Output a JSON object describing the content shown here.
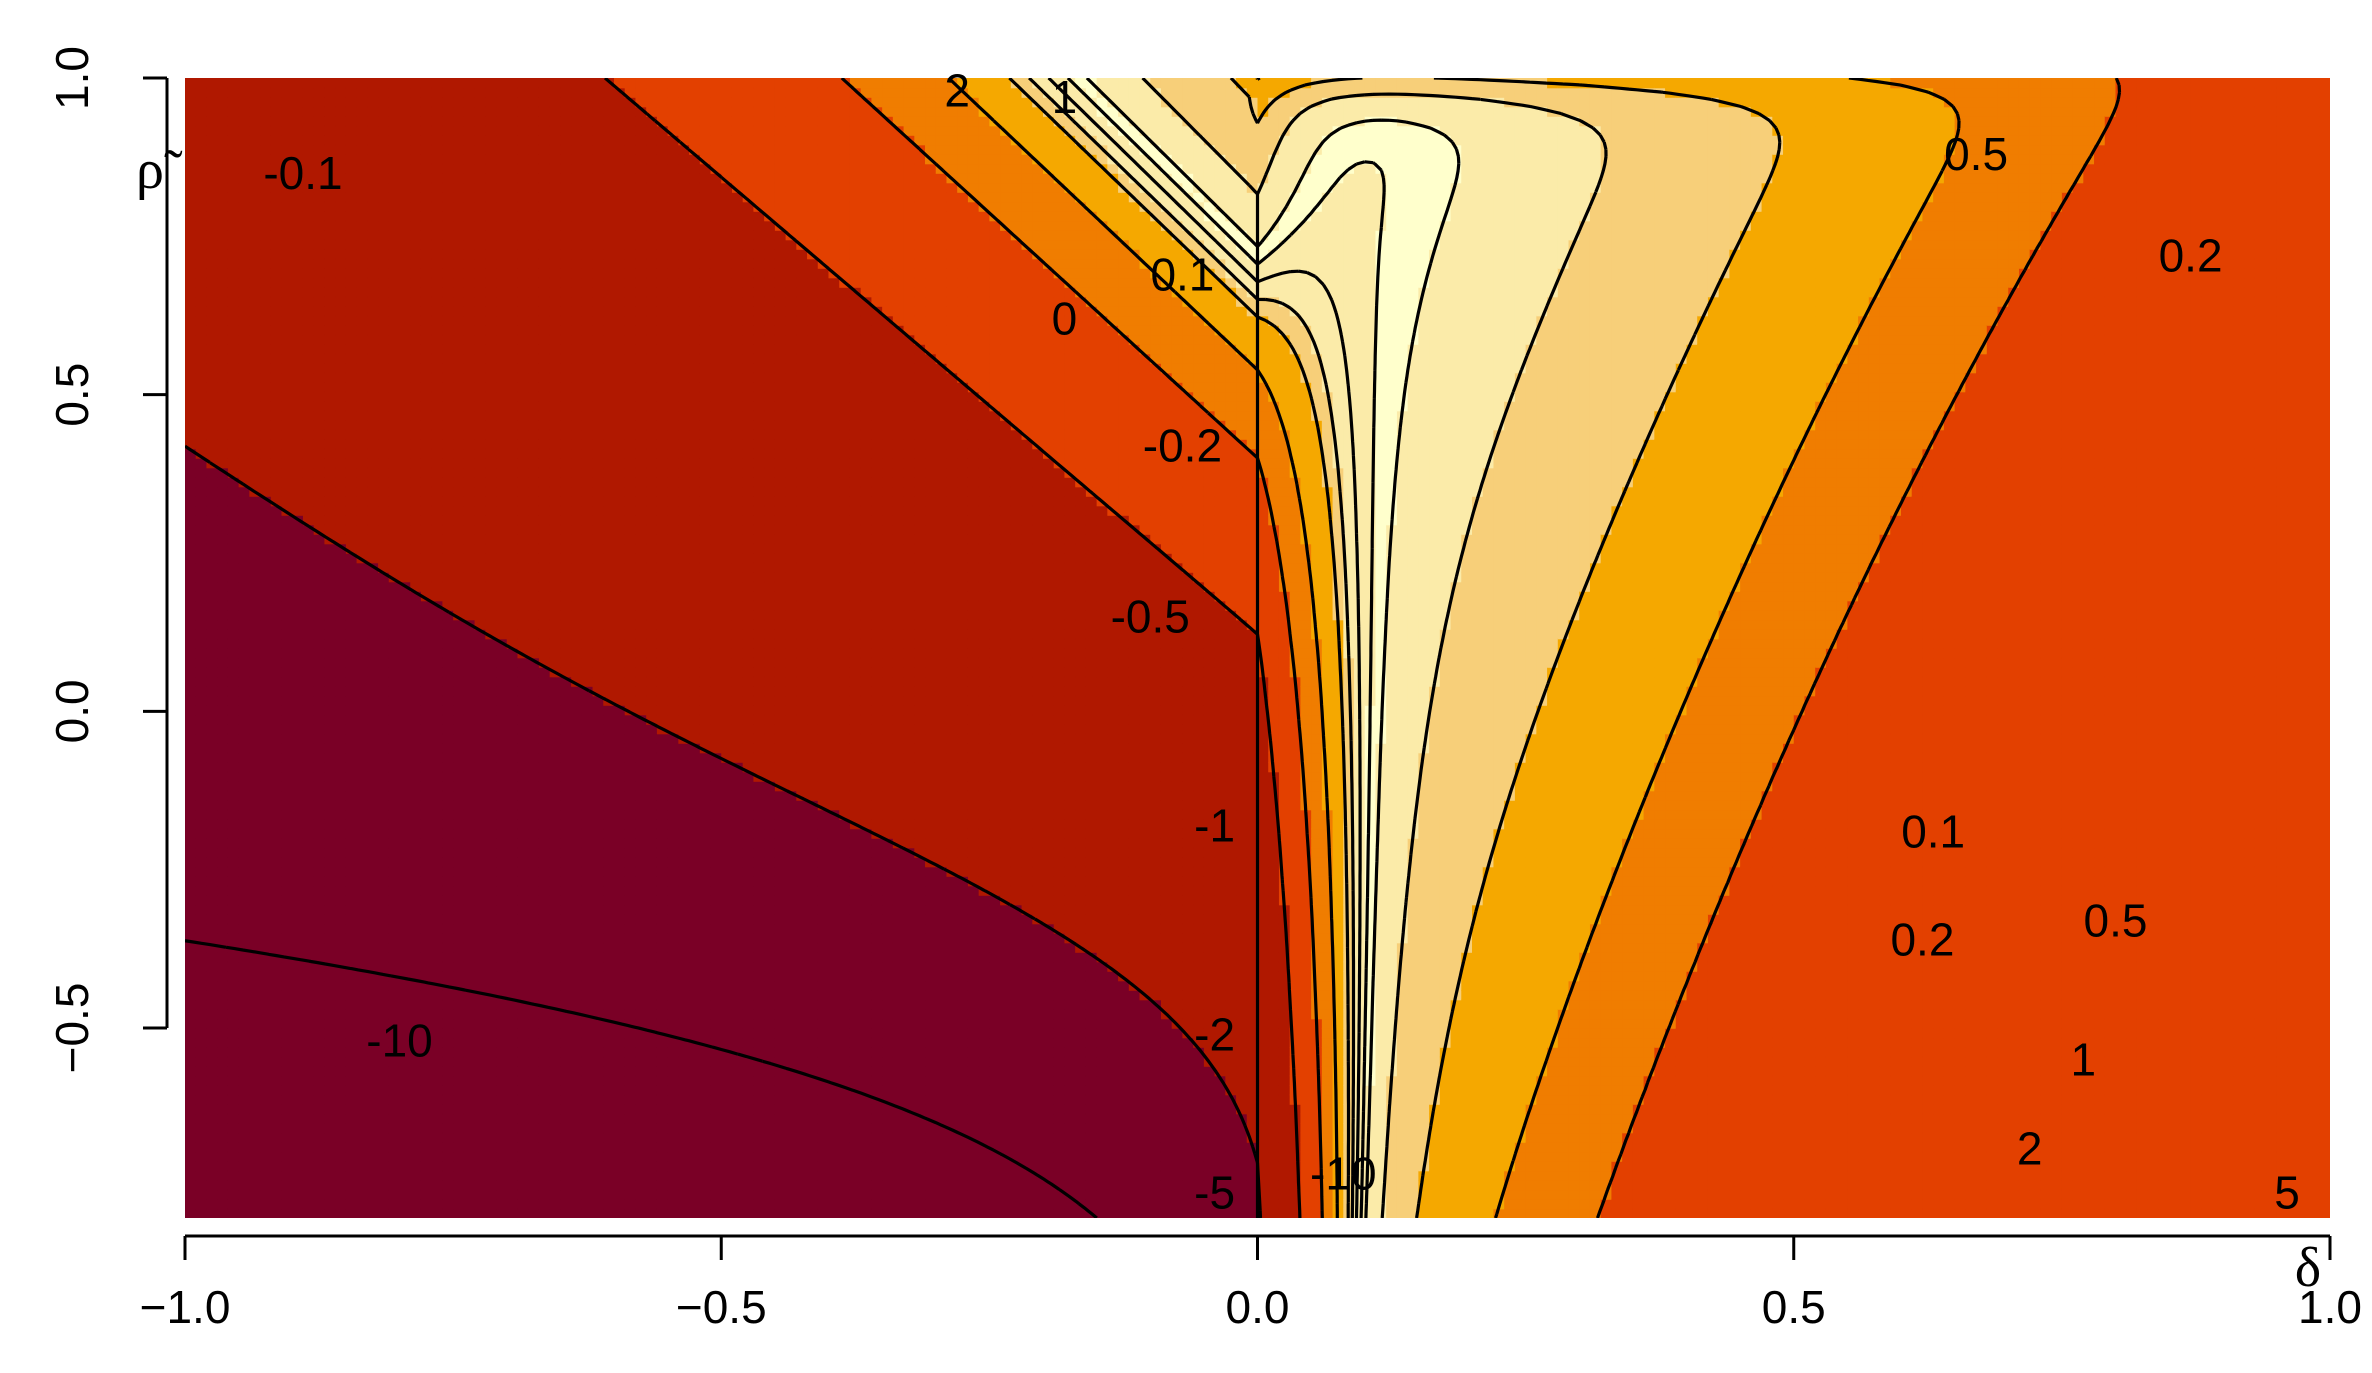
{
  "chart_data": {
    "type": "heatmap",
    "subtype": "filled-contour",
    "xlabel": "δ",
    "ylabel": "ρ̃",
    "xlim": [
      -1.0,
      1.0
    ],
    "ylim": [
      -0.8,
      1.0
    ],
    "x_ticks": [
      "−1.0",
      "−0.5",
      "0.0",
      "0.5",
      "1.0"
    ],
    "x_tick_values": [
      -1.0,
      -0.5,
      0.0,
      0.5,
      1.0
    ],
    "y_ticks": [
      "−0.5",
      "0.0",
      "0.5",
      "1.0"
    ],
    "y_tick_values": [
      -0.5,
      0.0,
      0.5,
      1.0
    ],
    "grid": false,
    "legend": "none",
    "color_levels": [
      "#7A0026",
      "#B01800",
      "#E34000",
      "#F07D00",
      "#F5A800",
      "#F7CF79",
      "#FBEBA9",
      "#FFFFCC"
    ],
    "contour_levels": [
      -10,
      -5,
      -2,
      -1,
      -0.5,
      -0.2,
      -0.1,
      0,
      0.1,
      0.2,
      0.5,
      1,
      2,
      5
    ],
    "contour_labels": [
      {
        "text": "2",
        "x": -0.28,
        "y": 0.98
      },
      {
        "text": "1",
        "x": -0.18,
        "y": 0.97
      },
      {
        "text": "0.5",
        "x": 0.67,
        "y": 0.88
      },
      {
        "text": "-0.1",
        "x": -0.89,
        "y": 0.85
      },
      {
        "text": "0.2",
        "x": 0.87,
        "y": 0.72
      },
      {
        "text": "0.1",
        "x": -0.07,
        "y": 0.69
      },
      {
        "text": "0",
        "x": -0.18,
        "y": 0.62
      },
      {
        "text": "-0.2",
        "x": -0.07,
        "y": 0.42
      },
      {
        "text": "-0.5",
        "x": -0.1,
        "y": 0.15
      },
      {
        "text": "-1",
        "x": -0.04,
        "y": -0.18
      },
      {
        "text": "-2",
        "x": -0.04,
        "y": -0.51
      },
      {
        "text": "-5",
        "x": -0.04,
        "y": -0.76
      },
      {
        "text": "-10",
        "x": -0.8,
        "y": -0.52
      },
      {
        "text": "-10",
        "x": 0.08,
        "y": -0.73
      },
      {
        "text": "0.1",
        "x": 0.63,
        "y": -0.19
      },
      {
        "text": "0.2",
        "x": 0.62,
        "y": -0.36
      },
      {
        "text": "0.5",
        "x": 0.8,
        "y": -0.33
      },
      {
        "text": "1",
        "x": 0.77,
        "y": -0.55
      },
      {
        "text": "2",
        "x": 0.72,
        "y": -0.69
      },
      {
        "text": "5",
        "x": 0.96,
        "y": -0.76
      }
    ]
  }
}
